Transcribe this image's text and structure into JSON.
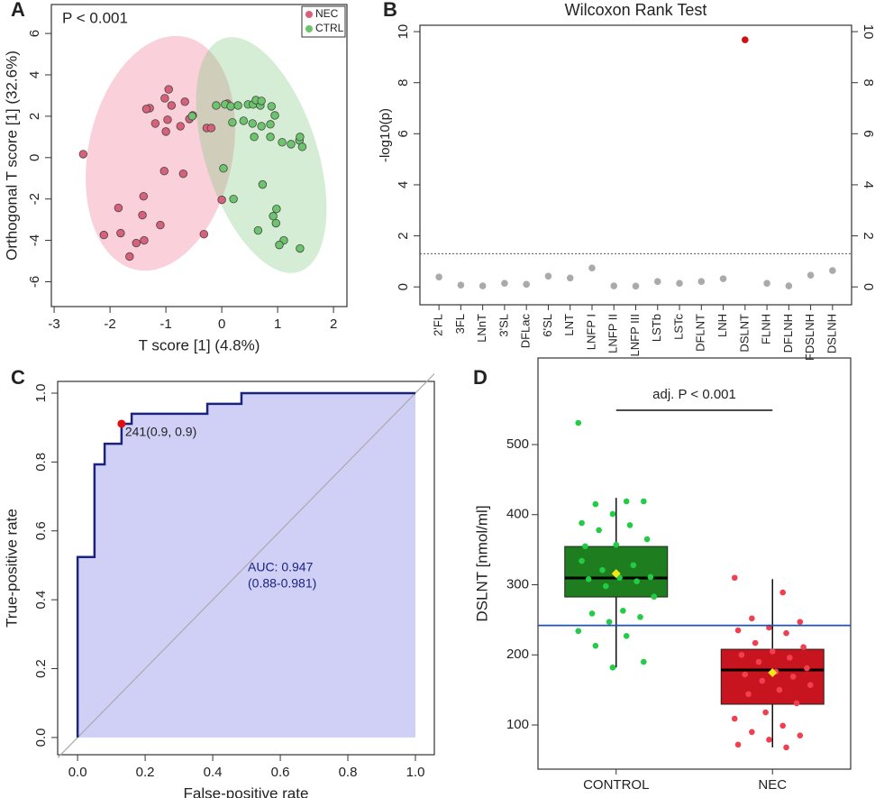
{
  "chart_data": [
    {
      "type": "scatter",
      "panel_label": "A",
      "annotation": "P < 0.001",
      "xlabel": "T score [1] (4.8%)",
      "ylabel": "Orthogonal T score [1] (32.6%)",
      "xlim": [
        -3.05,
        2.24
      ],
      "ylim": [
        -7.2,
        7.4
      ],
      "xticks": [
        -3,
        -2,
        -1,
        0,
        1,
        2
      ],
      "yticks": [
        -6,
        -4,
        -2,
        0,
        2,
        4,
        6
      ],
      "legend": "top-right",
      "series": [
        {
          "name": "NEC",
          "color": "#d9607a",
          "x": [
            -2.48,
            -0.95,
            -1.02,
            -1.29,
            -0.9,
            -0.66,
            -0.52,
            -0.58,
            -0.74,
            -0.97,
            -1.0,
            -1.19,
            -1.35,
            -0.27,
            -0.19,
            0.1,
            -1.03,
            -0.69,
            0.0,
            -0.32,
            -1.4,
            -1.85,
            -1.42,
            -1.1,
            -1.81,
            -1.53,
            -2.11,
            -1.65,
            -1.39
          ],
          "y": [
            0.17,
            3.3,
            2.87,
            2.39,
            2.52,
            2.7,
            2.04,
            1.87,
            1.52,
            1.83,
            1.26,
            1.65,
            2.35,
            1.43,
            1.43,
            2.61,
            -0.65,
            -0.78,
            -2.04,
            -3.7,
            -1.87,
            -2.43,
            -2.78,
            -3.26,
            -3.65,
            -4.13,
            -3.74,
            -4.78,
            -4.0
          ]
        },
        {
          "name": "CTRL",
          "color": "#6cc46c",
          "x": [
            -0.53,
            -0.1,
            0.06,
            0.16,
            0.29,
            0.47,
            0.56,
            0.69,
            0.61,
            0.71,
            0.89,
            0.95,
            0.19,
            0.39,
            0.55,
            0.71,
            0.87,
            0.58,
            0.87,
            1.08,
            1.24,
            1.39,
            1.44,
            1.4,
            0.03,
            0.21,
            0.73,
            0.98,
            0.92,
            0.97,
            0.65,
            1.11,
            1.03,
            1.4
          ],
          "y": [
            2.0,
            2.52,
            2.57,
            2.48,
            2.52,
            2.57,
            2.57,
            2.52,
            2.78,
            2.74,
            2.48,
            2.04,
            1.7,
            1.78,
            1.65,
            1.52,
            1.61,
            1.0,
            1.0,
            0.74,
            0.65,
            0.83,
            0.52,
            1.0,
            -0.52,
            -2.0,
            -1.3,
            -2.48,
            -2.83,
            -3.17,
            -3.52,
            -4.0,
            -4.22,
            -4.39
          ]
        }
      ]
    },
    {
      "type": "dot",
      "panel_label": "B",
      "title": "Wilcoxon Rank Test",
      "ylabel": "-log10(p)",
      "categories": [
        "2'FL",
        "3FL",
        "LNnT",
        "3'SL",
        "DFLac",
        "6'SL",
        "LNT",
        "LNFP I",
        "LNFP II",
        "LNFP III",
        "LSTb",
        "LSTc",
        "DFLNT",
        "LNH",
        "DSLNT",
        "FLNH",
        "DFLNH",
        "FDSLNH",
        "DSLNH"
      ],
      "values": [
        0.39,
        0.07,
        0.04,
        0.14,
        0.1,
        0.42,
        0.35,
        0.74,
        0.04,
        0.03,
        0.21,
        0.14,
        0.21,
        0.32,
        9.68,
        0.14,
        0.04,
        0.46,
        0.64
      ],
      "colors": [
        "#aaaaaa",
        "#aaaaaa",
        "#aaaaaa",
        "#aaaaaa",
        "#aaaaaa",
        "#aaaaaa",
        "#aaaaaa",
        "#aaaaaa",
        "#aaaaaa",
        "#aaaaaa",
        "#aaaaaa",
        "#aaaaaa",
        "#aaaaaa",
        "#aaaaaa",
        "#cc1111",
        "#aaaaaa",
        "#aaaaaa",
        "#aaaaaa",
        "#aaaaaa"
      ],
      "threshold": 1.3,
      "ylim": [
        -0.7,
        10.25
      ],
      "yticks": [
        0,
        2,
        4,
        6,
        8,
        10
      ],
      "y2lim": [
        -0.7,
        10.25
      ],
      "y2ticks": [
        0,
        2,
        4,
        6,
        8,
        10
      ]
    },
    {
      "type": "line",
      "panel_label": "C",
      "xlabel": "False-positive rate",
      "ylabel": "True-positive rate",
      "x": [
        0,
        0,
        0.05,
        0.05,
        0.08,
        0.08,
        0.13,
        0.13,
        0.16,
        0.16,
        0.384,
        0.384,
        0.485,
        0.485,
        1
      ],
      "y": [
        0,
        0.524,
        0.524,
        0.793,
        0.793,
        0.853,
        0.853,
        0.911,
        0.911,
        0.94,
        0.94,
        0.969,
        0.969,
        1,
        1
      ],
      "color": "#1a237e",
      "fill": "#c8c8f4",
      "highlight": {
        "x": 0.13,
        "y": 0.911,
        "label": "241(0.9, 0.9)",
        "color": "#e01010"
      },
      "annotations": [
        "AUC: 0.947",
        "(0.88-0.981)"
      ],
      "xlim": [
        -0.059,
        1.056
      ],
      "ylim": [
        -0.05,
        1.034
      ],
      "xticks": [
        {
          "value": 0,
          "label": "0.0"
        },
        0.2,
        0.4,
        0.6,
        0.8,
        {
          "value": 1,
          "label": "1.0"
        }
      ],
      "yticks": [
        {
          "value": 0,
          "label": "0.0"
        },
        0.2,
        0.4,
        0.6,
        0.8,
        {
          "value": 1,
          "label": "1.0"
        }
      ]
    },
    {
      "type": "box",
      "panel_label": "D",
      "ylabel": "DSLNT [nmol/ml]",
      "annotation": "adj. P < 0.001",
      "categories": [
        "CONTROL",
        "NEC"
      ],
      "groups": [
        {
          "box_color": "#1e7d1e",
          "point_color": "#22cc44",
          "whisker_low": 182,
          "q1": 282.6,
          "median": 309.6,
          "q3": 354.6,
          "whisker_high": 424,
          "mean": 316,
          "points": [
            530.9,
            419,
            415,
            419,
            401,
            388,
            385,
            378,
            365,
            357,
            355,
            328,
            321,
            311,
            310,
            308,
            305,
            298,
            283,
            263,
            259,
            254,
            247,
            234,
            227,
            213,
            190,
            182,
            334
          ]
        },
        {
          "box_color": "#c8141e",
          "point_color": "#f04050",
          "whisker_low": 68,
          "q1": 129.6,
          "median": 178.5,
          "q3": 208,
          "whisker_high": 308,
          "mean": 174.6,
          "points": [
            310,
            289,
            252,
            247,
            239,
            235,
            231,
            217,
            211,
            205,
            200,
            196,
            190,
            181,
            176,
            172,
            169,
            163,
            157,
            150,
            144,
            131,
            118,
            109,
            99,
            90,
            85,
            79,
            72,
            68
          ]
        }
      ],
      "reference_line": 242,
      "reference_color": "#2050b0",
      "ylim": [
        37,
        623.5
      ],
      "yticks": [
        100,
        200,
        300,
        400,
        500
      ]
    }
  ]
}
